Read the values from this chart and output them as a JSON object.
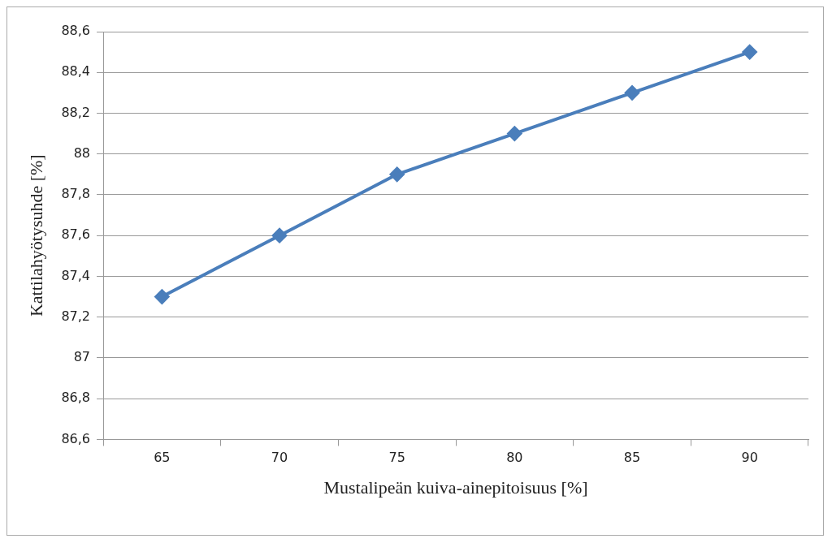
{
  "chart_data": {
    "type": "line",
    "xlabel": "Mustalipeän kuiva-ainepitoisuus [%]",
    "ylabel": "Kattilahyötysuhde [%]",
    "categories": [
      "65",
      "70",
      "75",
      "80",
      "85",
      "90"
    ],
    "series": [
      {
        "color": "#4a7ebb",
        "values": [
          87.3,
          87.6,
          87.9,
          88.1,
          88.3,
          88.5
        ]
      }
    ],
    "ylim": [
      86.6,
      88.6
    ],
    "yticks": [
      {
        "value": 86.6,
        "label": "86,6"
      },
      {
        "value": 86.8,
        "label": "86,8"
      },
      87,
      {
        "value": 87.2,
        "label": "87,2"
      },
      {
        "value": 87.4,
        "label": "87,4"
      },
      {
        "value": 87.6,
        "label": "87,6"
      },
      {
        "value": 87.8,
        "label": "87,8"
      },
      88,
      {
        "value": 88.2,
        "label": "88,2"
      },
      {
        "value": 88.4,
        "label": "88,4"
      },
      {
        "value": 88.6,
        "label": "88,6"
      }
    ],
    "grid": "y",
    "legend": false,
    "marker": "diamond",
    "line_style": "solid"
  }
}
